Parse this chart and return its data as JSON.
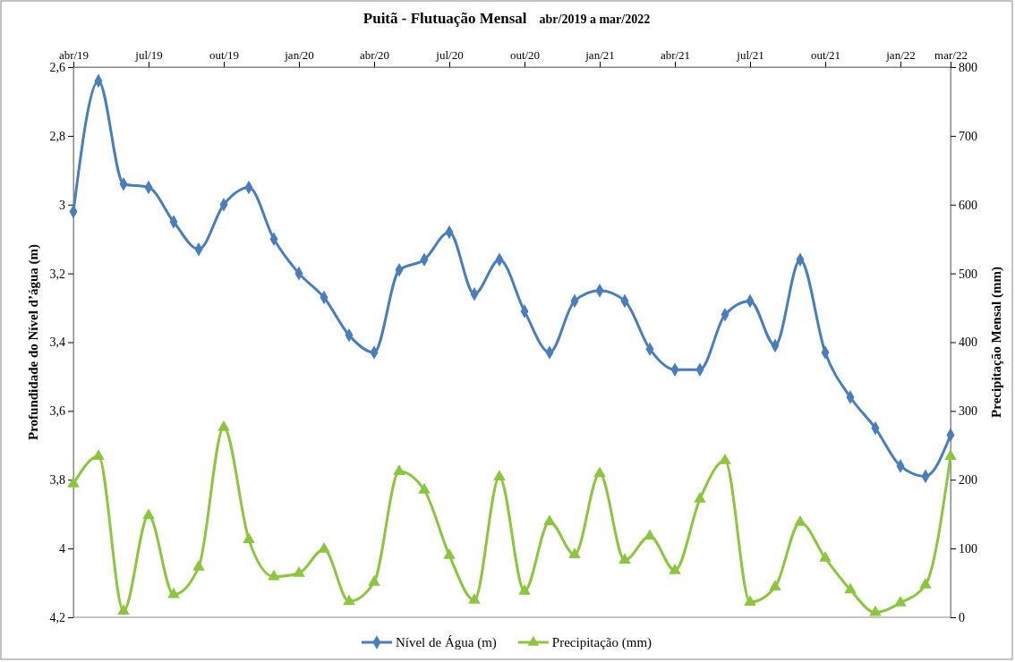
{
  "chart_data": {
    "type": "line",
    "title": "Puitã - Flutuação Mensal",
    "subtitle": "abr/2019 a mar/2022",
    "ylabel": "Profundidade do Nível d’água (m)",
    "y2label": "Precipitação Mensal  (mm)",
    "categories": [
      "abr/19",
      null,
      null,
      "jul/19",
      null,
      null,
      "out/19",
      null,
      null,
      "jan/20",
      null,
      null,
      "abr/20",
      null,
      null,
      "jul/20",
      null,
      null,
      "out/20",
      null,
      null,
      "jan/21",
      null,
      null,
      "abr/21",
      null,
      null,
      "jul/21",
      null,
      null,
      "out/21",
      null,
      null,
      "jan/22",
      null,
      "mar/22"
    ],
    "ylim": [
      4.2,
      2.6
    ],
    "yticks": [
      {
        "value": 2.6,
        "label": "2,6"
      },
      {
        "value": 2.8,
        "label": "2,8"
      },
      {
        "value": 3,
        "label": "3"
      },
      {
        "value": 3.2,
        "label": "3,2"
      },
      {
        "value": 3.4,
        "label": "3,4"
      },
      {
        "value": 3.6,
        "label": "3,6"
      },
      {
        "value": 3.8,
        "label": "3,8"
      },
      {
        "value": 4,
        "label": "4"
      },
      {
        "value": 4.2,
        "label": "4,2"
      }
    ],
    "y2lim": [
      0,
      800
    ],
    "y2ticks": [
      0,
      100,
      200,
      300,
      400,
      500,
      600,
      700,
      800
    ],
    "series": [
      {
        "name": "Nível de Água (m)",
        "color": "#4a7ebb",
        "marker": "diamond",
        "values": [
          3.02,
          2.64,
          2.94,
          2.95,
          3.05,
          3.13,
          3.0,
          2.95,
          3.1,
          3.2,
          3.27,
          3.38,
          3.43,
          3.19,
          3.16,
          3.08,
          3.26,
          3.16,
          3.31,
          3.43,
          3.28,
          3.25,
          3.28,
          3.42,
          3.48,
          3.48,
          3.32,
          3.28,
          3.41,
          3.16,
          3.43,
          3.56,
          3.65,
          3.76,
          3.79,
          3.67
        ]
      },
      {
        "name": "Precipitação (mm)",
        "color": "#8cc63f",
        "marker": "triangle",
        "axis": "y2",
        "values": [
          194,
          234,
          9,
          148,
          33,
          73,
          276,
          113,
          59,
          64,
          99,
          23,
          51,
          212,
          185,
          90,
          25,
          204,
          38,
          139,
          91,
          209,
          83,
          118,
          68,
          172,
          228,
          22,
          44,
          138,
          86,
          40,
          7,
          21,
          47,
          234
        ]
      }
    ],
    "grid": false,
    "legend": "bottom"
  }
}
